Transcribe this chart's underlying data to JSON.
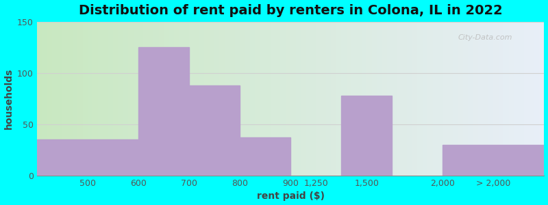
{
  "title": "Distribution of rent paid by renters in Colona, IL in 2022",
  "xlabel": "rent paid ($)",
  "ylabel": "households",
  "bar_values": [
    35,
    125,
    88,
    37,
    78,
    30
  ],
  "bar_color": "#b8a0cc",
  "bg_color_outer": "#00ffff",
  "bg_grad_left": "#c8e8c8",
  "bg_grad_right": "#e8eef8",
  "grid_color": "#e0e0e0",
  "title_fontsize": 14,
  "axis_label_fontsize": 10,
  "tick_fontsize": 9,
  "ylim": [
    0,
    150
  ],
  "yticks": [
    0,
    50,
    100,
    150
  ],
  "watermark": "City-Data.com",
  "bar_left_edges": [
    0,
    2,
    3,
    4,
    6,
    8
  ],
  "bar_widths": [
    2,
    1,
    1,
    1,
    1,
    2
  ],
  "xtick_positions": [
    1,
    2,
    3,
    4,
    5,
    5.5,
    6.5,
    8,
    9
  ],
  "xtick_labels": [
    "500",
    "600",
    "700",
    "800",
    "900",
    "1,250",
    "1,500",
    "2,000",
    "> 2,000"
  ],
  "xlim": [
    0,
    10
  ]
}
